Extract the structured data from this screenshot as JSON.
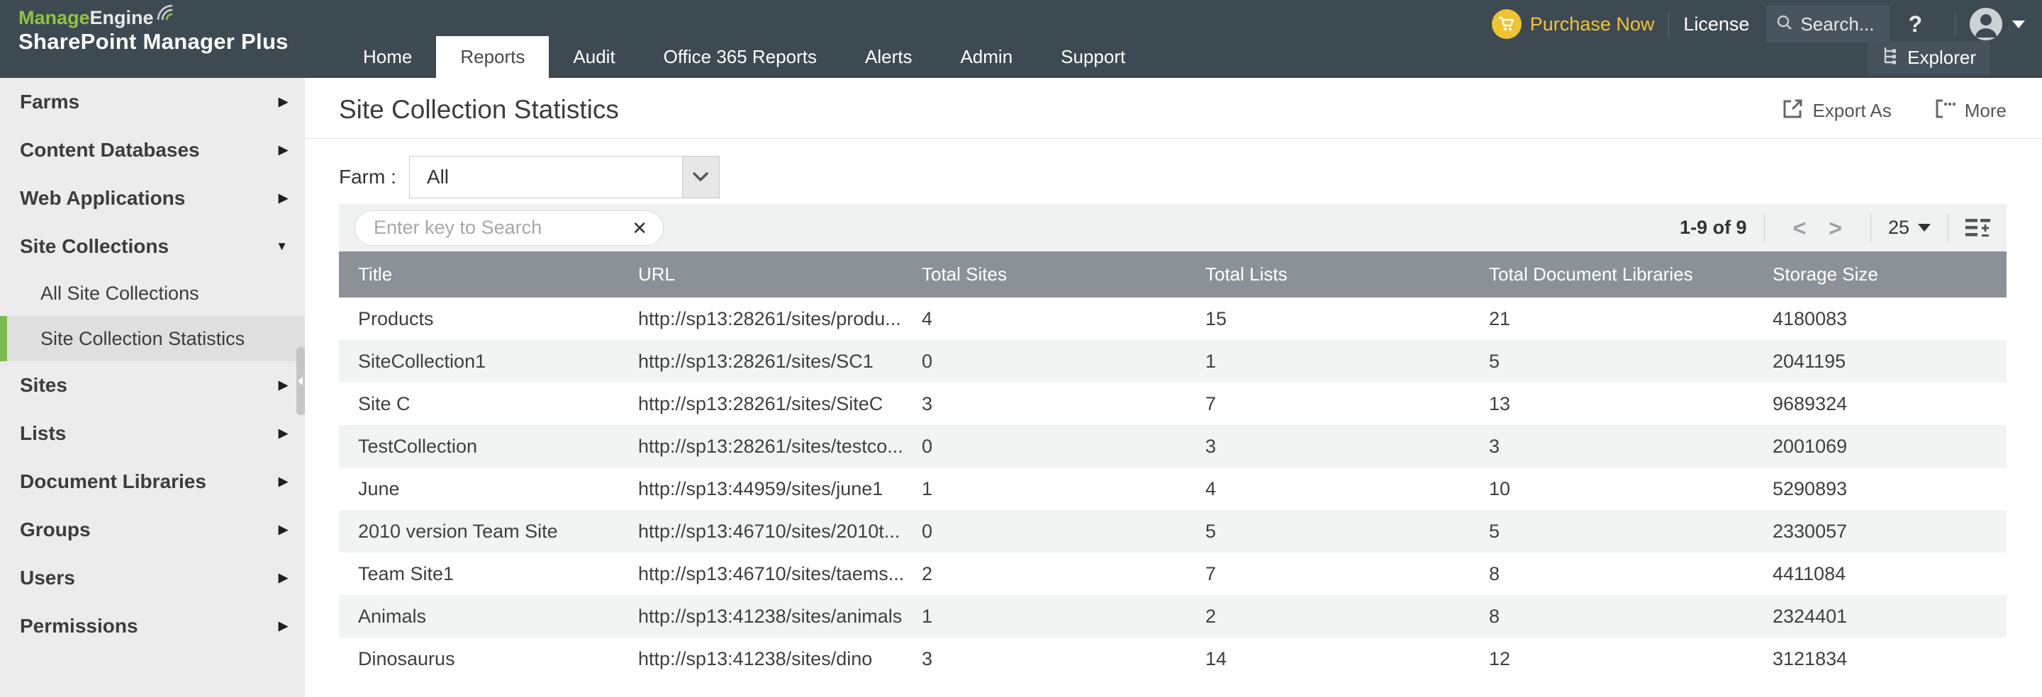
{
  "colors": {
    "header_bg": "#3e4a52",
    "brand_green": "#8dc63f",
    "purchase_yellow": "#f3c231",
    "selected_accent_green": "#7cb950",
    "table_header_bg": "#8b9197"
  },
  "icons": {
    "cart": "shopping-cart",
    "search": "magnifier",
    "help": "?",
    "avatar": "person-circle",
    "caret_down": "▼",
    "explorer": "tree-hierarchy",
    "export": "box-arrow-out",
    "more": "bracket-dots",
    "chevron_right": "▶",
    "chevron_down": "▼",
    "clear": "✕",
    "prev": "<",
    "next": ">",
    "column_chooser": "lines-plus-minus"
  },
  "header": {
    "logo": {
      "brand_green": "Manage",
      "brand_white": "Engine",
      "product": "SharePoint Manager Plus"
    },
    "nav": [
      {
        "label": "Home",
        "active": false
      },
      {
        "label": "Reports",
        "active": true
      },
      {
        "label": "Audit",
        "active": false
      },
      {
        "label": "Office 365 Reports",
        "active": false
      },
      {
        "label": "Alerts",
        "active": false
      },
      {
        "label": "Admin",
        "active": false
      },
      {
        "label": "Support",
        "active": false
      }
    ],
    "purchase_now": "Purchase Now",
    "license": "License",
    "search_placeholder": "Search...",
    "help_label": "?",
    "explorer": "Explorer"
  },
  "sidebar": {
    "items": [
      {
        "label": "Farms",
        "arrow": "right"
      },
      {
        "label": "Content Databases",
        "arrow": "right"
      },
      {
        "label": "Web Applications",
        "arrow": "right"
      },
      {
        "label": "Site Collections",
        "arrow": "down",
        "expanded": true,
        "children": [
          {
            "label": "All Site Collections",
            "selected": false
          },
          {
            "label": "Site Collection Statistics",
            "selected": true
          }
        ]
      },
      {
        "label": "Sites",
        "arrow": "right"
      },
      {
        "label": "Lists",
        "arrow": "right"
      },
      {
        "label": "Document Libraries",
        "arrow": "right"
      },
      {
        "label": "Groups",
        "arrow": "right"
      },
      {
        "label": "Users",
        "arrow": "right"
      },
      {
        "label": "Permissions",
        "arrow": "right"
      }
    ]
  },
  "main": {
    "title": "Site Collection Statistics",
    "export_as": "Export As",
    "more": "More",
    "farm_label": "Farm :",
    "farm_value": "All",
    "search_placeholder": "Enter key to Search",
    "pagination": {
      "range": "1-9 of 9",
      "page_size": "25"
    },
    "table": {
      "columns": [
        "Title",
        "URL",
        "Total Sites",
        "Total Lists",
        "Total Document Libraries",
        "Storage Size"
      ],
      "rows": [
        [
          "Products",
          "http://sp13:28261/sites/produ...",
          "4",
          "15",
          "21",
          "4180083"
        ],
        [
          "SiteCollection1",
          "http://sp13:28261/sites/SC1",
          "0",
          "1",
          "5",
          "2041195"
        ],
        [
          "Site C",
          "http://sp13:28261/sites/SiteC",
          "3",
          "7",
          "13",
          "9689324"
        ],
        [
          "TestCollection",
          "http://sp13:28261/sites/testco...",
          "0",
          "3",
          "3",
          "2001069"
        ],
        [
          "June",
          "http://sp13:44959/sites/june1",
          "1",
          "4",
          "10",
          "5290893"
        ],
        [
          "2010 version Team Site",
          "http://sp13:46710/sites/2010t...",
          "0",
          "5",
          "5",
          "2330057"
        ],
        [
          "Team Site1",
          "http://sp13:46710/sites/taems...",
          "2",
          "7",
          "8",
          "4411084"
        ],
        [
          "Animals",
          "http://sp13:41238/sites/animals",
          "1",
          "2",
          "8",
          "2324401"
        ],
        [
          "Dinosaurus",
          "http://sp13:41238/sites/dino",
          "3",
          "14",
          "12",
          "3121834"
        ]
      ]
    }
  }
}
